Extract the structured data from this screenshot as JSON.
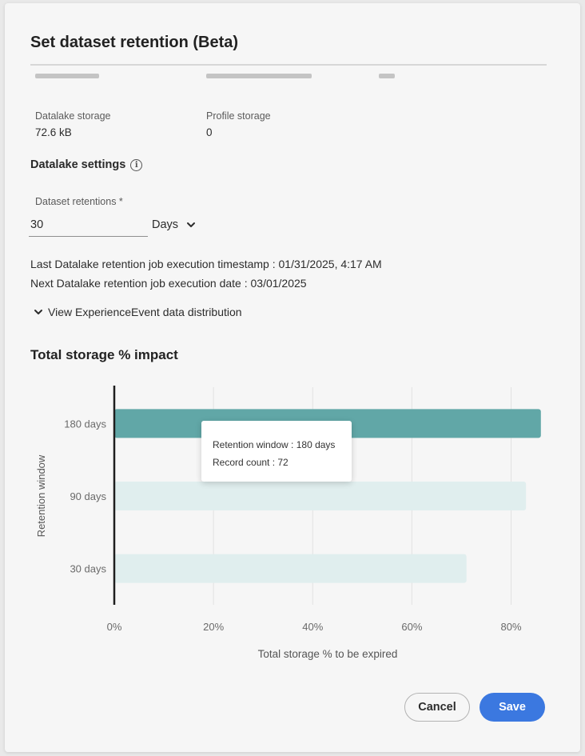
{
  "dialog": {
    "title": "Set dataset retention (Beta)"
  },
  "storage": {
    "datalake_label": "Datalake storage",
    "datalake_value": "72.6 kB",
    "profile_label": "Profile storage",
    "profile_value": "0"
  },
  "settings": {
    "heading": "Datalake settings",
    "info_icon": "info-icon",
    "retention_label": "Dataset retentions *",
    "retention_value": "30",
    "unit_value": "Days",
    "last_run": "Last Datalake retention job execution timestamp : 01/31/2025, 4:17 AM",
    "next_run": "Next Datalake retention job execution date : 03/01/2025",
    "distribution_link": "View ExperienceEvent data distribution"
  },
  "chart_title": "Total storage % impact",
  "chart_data": {
    "type": "bar",
    "orientation": "horizontal",
    "categories": [
      "180 days",
      "90 days",
      "30 days"
    ],
    "values": [
      86,
      83,
      71
    ],
    "highlighted_category": "180 days",
    "xlabel": "Total storage % to be expired",
    "ylabel": "Retention window",
    "xlim": [
      0,
      87
    ],
    "xticks": [
      "0%",
      "20%",
      "40%",
      "60%",
      "80%"
    ],
    "xtick_values": [
      0,
      20,
      40,
      60,
      80
    ],
    "grid": true,
    "colors": {
      "highlight": "#61a7a7",
      "muted": "#e0eeee"
    }
  },
  "tooltip": {
    "line1": "Retention window : 180 days",
    "line2": "Record count : 72"
  },
  "actions": {
    "cancel_label": "Cancel",
    "save_label": "Save"
  }
}
